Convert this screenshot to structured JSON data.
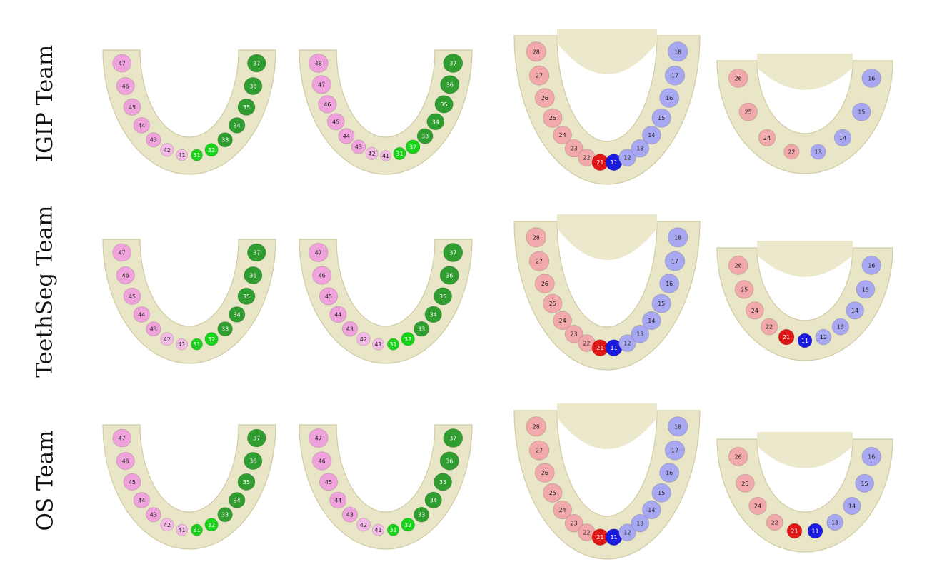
{
  "rows": [
    {
      "label": "IGIP Team",
      "panels": [
        {
          "view": "lower-left",
          "teeth": [
            "47",
            "46",
            "45",
            "44",
            "43",
            "42",
            "41",
            "31",
            "32",
            "33",
            "34",
            "35",
            "36",
            "37"
          ]
        },
        {
          "view": "lower-right",
          "teeth": [
            "48",
            "47",
            "46",
            "45",
            "44",
            "43",
            "42",
            "41",
            "31",
            "32",
            "33",
            "34",
            "35",
            "36",
            "37"
          ]
        },
        {
          "view": "upper-front",
          "teeth": [
            "28",
            "27",
            "26",
            "25",
            "24",
            "23",
            "22",
            "21",
            "11",
            "12",
            "13",
            "14",
            "15",
            "16",
            "17",
            "18"
          ]
        },
        {
          "view": "upper-small",
          "teeth": [
            "26",
            "25",
            "24",
            "22",
            "13",
            "14",
            "15",
            "16"
          ]
        }
      ]
    },
    {
      "label": "TeethSeg Team",
      "panels": [
        {
          "view": "lower-left",
          "teeth": [
            "47",
            "46",
            "45",
            "44",
            "43",
            "42",
            "41",
            "31",
            "32",
            "33",
            "34",
            "35",
            "36",
            "37"
          ]
        },
        {
          "view": "lower-right",
          "teeth": [
            "47",
            "46",
            "45",
            "44",
            "43",
            "42",
            "41",
            "31",
            "32",
            "33",
            "34",
            "35",
            "36",
            "37"
          ]
        },
        {
          "view": "upper-front",
          "teeth": [
            "28",
            "27",
            "26",
            "25",
            "24",
            "23",
            "22",
            "21",
            "11",
            "12",
            "13",
            "14",
            "15",
            "16",
            "17",
            "18"
          ]
        },
        {
          "view": "upper-small",
          "teeth": [
            "26",
            "25",
            "24",
            "22",
            "21",
            "11",
            "12",
            "13",
            "14",
            "15",
            "16"
          ]
        }
      ]
    },
    {
      "label": "OS Team",
      "panels": [
        {
          "view": "lower-left",
          "teeth": [
            "47",
            "46",
            "45",
            "44",
            "43",
            "42",
            "41",
            "31",
            "32",
            "33",
            "34",
            "35",
            "36",
            "37"
          ]
        },
        {
          "view": "lower-right",
          "teeth": [
            "47",
            "46",
            "45",
            "44",
            "43",
            "42",
            "41",
            "31",
            "32",
            "33",
            "34",
            "35",
            "36",
            "37"
          ]
        },
        {
          "view": "upper-front",
          "teeth": [
            "28",
            "27",
            "26",
            "25",
            "24",
            "23",
            "22",
            "21",
            "11",
            "12",
            "13",
            "14",
            "15",
            "16",
            "17",
            "18"
          ]
        },
        {
          "view": "upper-small",
          "teeth": [
            "26",
            "25",
            "24",
            "22",
            "21",
            "11",
            "13",
            "14",
            "15",
            "16"
          ]
        }
      ]
    }
  ],
  "colors": {
    "gum": "#e9e6c7",
    "gum_edge": "#cfcba4",
    "q1": "#a8a8f2",
    "q1_front": "#1a1ae0",
    "q2": "#f2a9ab",
    "q2_front": "#e01717",
    "q3": "#2f9d2f",
    "q3_front": "#18d418",
    "q4": "#f0a2dc",
    "q4_front": "#f4b9e6"
  }
}
